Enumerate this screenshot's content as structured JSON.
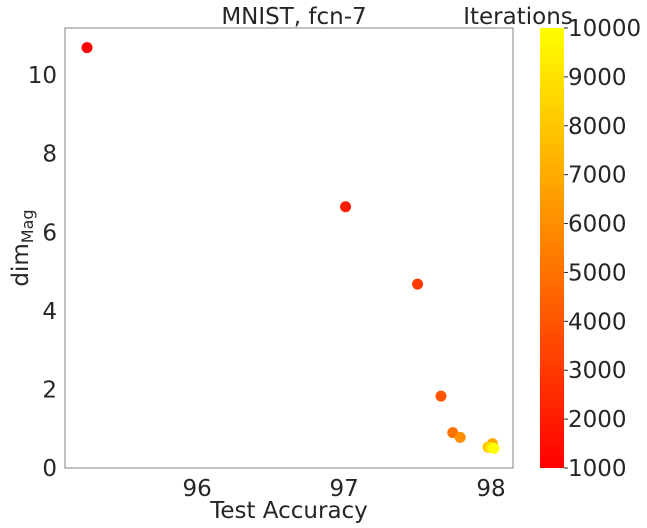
{
  "chart_data": {
    "type": "scatter",
    "title": "MNIST, fcn-7",
    "xlabel": "Test Accuracy",
    "ylabel_main": "dim",
    "ylabel_sub": "Mag",
    "xlim": [
      95.1,
      98.15
    ],
    "ylim": [
      0,
      11.2
    ],
    "xticks": [
      96,
      97,
      98
    ],
    "yticks": [
      0,
      2,
      4,
      6,
      8,
      10
    ],
    "grid": false,
    "colorbar": {
      "label": "Iterations",
      "min": 1000,
      "max": 10000,
      "ticks": [
        1000,
        2000,
        3000,
        4000,
        5000,
        6000,
        7000,
        8000,
        9000,
        10000
      ],
      "colormap": "autumn",
      "color_low": "#ff0000",
      "color_high": "#ffff00"
    },
    "points": [
      {
        "x": 95.25,
        "y": 10.7,
        "iteration": 1000
      },
      {
        "x": 97.01,
        "y": 6.65,
        "iteration": 2000
      },
      {
        "x": 97.5,
        "y": 4.68,
        "iteration": 3000
      },
      {
        "x": 97.66,
        "y": 1.83,
        "iteration": 4000
      },
      {
        "x": 97.74,
        "y": 0.9,
        "iteration": 5000
      },
      {
        "x": 97.79,
        "y": 0.78,
        "iteration": 6000
      },
      {
        "x": 98.01,
        "y": 0.62,
        "iteration": 7000
      },
      {
        "x": 97.98,
        "y": 0.53,
        "iteration": 8000
      },
      {
        "x": 98.0,
        "y": 0.52,
        "iteration": 9000
      },
      {
        "x": 98.02,
        "y": 0.5,
        "iteration": 10000
      }
    ]
  }
}
